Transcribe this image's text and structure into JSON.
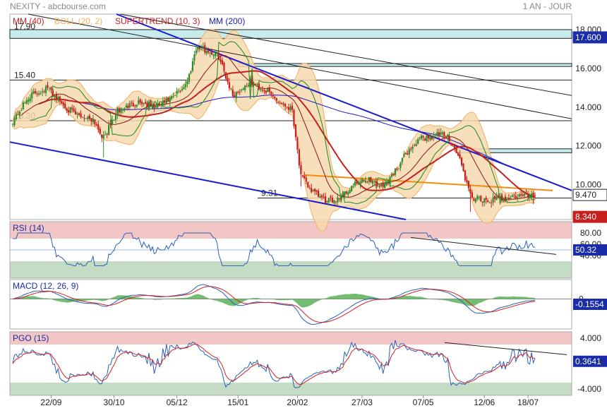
{
  "header": {
    "symbol": "NEXITY - abcbourse.com",
    "period": "1 AN - JOUR"
  },
  "colors": {
    "candle_up": "#2e8b2e",
    "candle_down": "#c81e1e",
    "boll": "#f0b060",
    "boll_fill": "#f5d9ae",
    "supertrend": "#c81e1e",
    "ma40": "#c81e1e",
    "ma200": "#1a1ad0",
    "trend_blue": "#1a1ad0",
    "trend_black": "#222222",
    "trend_orange": "#f08c14",
    "zone_red": "#f3c6c6",
    "zone_green": "#c4dcc4",
    "rsi_line": "#2a60b8",
    "macd_line": "#2a60b8",
    "macd_signal": "#d02020",
    "macd_hist": "#59b159",
    "pgo_line": "#2a60b8",
    "pgo_signal": "#d02020",
    "level_fill": "#c8ecec",
    "label_blue": "#1a2ca8",
    "label_red": "#c81e1e"
  },
  "chart_data": [
    {
      "type": "candlestick",
      "panel": "price",
      "legend": [
        "MM (40)",
        "BOLL (20, 2)",
        "SUPERTREND (10, 3)",
        "MM (200)"
      ],
      "ylim": [
        8.2,
        18.8
      ],
      "y_ticks": [
        "18.000",
        "16.000",
        "14.000",
        "12.000",
        "10.000"
      ],
      "x_ticks": [
        "22/09",
        "30/10",
        "05/12",
        "15/01",
        "20/02",
        "27/03",
        "07/05",
        "12/06",
        "18/07"
      ],
      "level_labels": [
        {
          "label": "17.90",
          "value": 17.9
        },
        {
          "label": "15.40",
          "value": 15.4
        },
        {
          "label": "13.30",
          "value": 13.3
        },
        {
          "label": "9.31",
          "value": 9.31
        }
      ],
      "price_tags": [
        {
          "label": "17.600",
          "value": 17.6,
          "color": "#1a2ca8"
        },
        {
          "label": "9.470",
          "value": 9.47,
          "color": "#ffffff"
        },
        {
          "label": "8.340",
          "value": 8.34,
          "color": "#c81e1e"
        }
      ],
      "anchors": [
        [
          0,
          13.3
        ],
        [
          10,
          14.6
        ],
        [
          20,
          15.0
        ],
        [
          28,
          14.2
        ],
        [
          36,
          13.6
        ],
        [
          46,
          13.4
        ],
        [
          52,
          12.4
        ],
        [
          60,
          13.8
        ],
        [
          72,
          14.3
        ],
        [
          82,
          14.0
        ],
        [
          92,
          14.5
        ],
        [
          100,
          15.3
        ],
        [
          105,
          17.1
        ],
        [
          112,
          16.9
        ],
        [
          118,
          16.6
        ],
        [
          126,
          14.6
        ],
        [
          136,
          15.3
        ],
        [
          146,
          14.8
        ],
        [
          152,
          14.3
        ],
        [
          160,
          13.9
        ],
        [
          165,
          10.4
        ],
        [
          172,
          9.6
        ],
        [
          180,
          9.1
        ],
        [
          188,
          9.4
        ],
        [
          196,
          10.0
        ],
        [
          204,
          10.3
        ],
        [
          212,
          9.9
        ],
        [
          218,
          10.6
        ],
        [
          226,
          11.7
        ],
        [
          234,
          12.4
        ],
        [
          244,
          12.6
        ],
        [
          250,
          12.4
        ],
        [
          256,
          11.3
        ],
        [
          262,
          9.4
        ],
        [
          270,
          9.1
        ],
        [
          280,
          9.3
        ],
        [
          290,
          9.4
        ],
        [
          300,
          9.5
        ]
      ],
      "ohlc_count": 300
    },
    {
      "type": "line",
      "panel": "rsi",
      "title": "RSI (14)",
      "ylim": [
        0,
        100
      ],
      "y_ticks": [
        "80.00",
        "60.00",
        "40.00"
      ],
      "last_value": "50.32",
      "zones": {
        "upper": 70,
        "lower": 30,
        "mid": 50
      }
    },
    {
      "type": "line",
      "panel": "macd",
      "title": "MACD (12, 26, 9)",
      "ylim": [
        -0.85,
        0.55
      ],
      "y_ticks": [
        "0"
      ],
      "last_value": "-0.1554"
    },
    {
      "type": "line",
      "panel": "pgo",
      "title": "PGO (15)",
      "ylim": [
        -5.0,
        5.0
      ],
      "y_ticks": [
        "4.000",
        "-4.000"
      ],
      "last_value": "0.3641",
      "zones": {
        "upper": 3,
        "lower": -3
      }
    }
  ]
}
